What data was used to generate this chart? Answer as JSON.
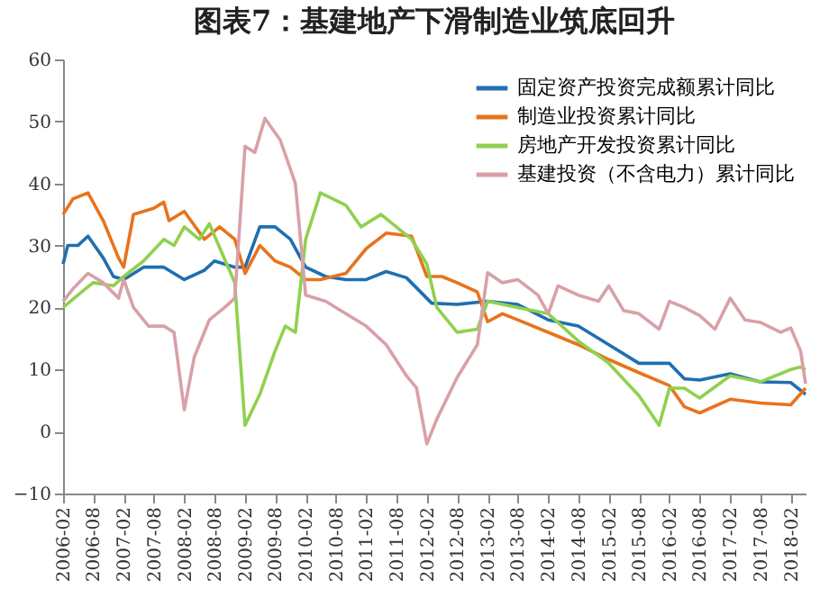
{
  "chart_data": {
    "type": "line",
    "title": "图表7：基建地产下滑制造业筑底回升",
    "xlim": [
      "2006-02",
      "2018-05"
    ],
    "xticks": [
      "2006-02",
      "2006-08",
      "2007-02",
      "2007-08",
      "2008-02",
      "2008-08",
      "2009-02",
      "2009-08",
      "2010-02",
      "2010-08",
      "2011-02",
      "2011-08",
      "2012-02",
      "2012-08",
      "2013-02",
      "2013-08",
      "2014-02",
      "2014-08",
      "2015-02",
      "2015-08",
      "2016-02",
      "2016-08",
      "2017-02",
      "2017-08",
      "2018-02"
    ],
    "ylim": [
      -10,
      60
    ],
    "yticks": [
      -10,
      0,
      10,
      20,
      30,
      40,
      50,
      60
    ],
    "grid": false,
    "legend": "top right",
    "line_style": "solid",
    "series": [
      {
        "name": "固定资产投资完成额累计同比",
        "color": "#1f6fb0",
        "x": [
          "2006-02",
          "2006-03",
          "2006-05",
          "2006-07",
          "2006-10",
          "2006-12",
          "2007-02",
          "2007-06",
          "2007-10",
          "2008-02",
          "2008-06",
          "2008-08",
          "2008-12",
          "2009-02",
          "2009-05",
          "2009-08",
          "2009-11",
          "2010-02",
          "2010-06",
          "2010-10",
          "2011-02",
          "2011-06",
          "2011-10",
          "2012-03",
          "2012-08",
          "2013-02",
          "2013-08",
          "2014-02",
          "2014-08",
          "2015-02",
          "2015-08",
          "2016-02",
          "2016-05",
          "2016-08",
          "2017-02",
          "2017-08",
          "2018-02",
          "2018-05"
        ],
        "values": [
          27,
          30,
          30,
          31.5,
          28,
          25,
          24.5,
          26.5,
          26.5,
          24.5,
          26,
          27.5,
          26.5,
          26.5,
          33,
          33,
          31,
          26.5,
          25,
          24.5,
          24.5,
          25.8,
          24.8,
          20.7,
          20.5,
          21,
          20.5,
          18,
          17,
          14,
          11,
          11,
          8.5,
          8.3,
          9.3,
          8,
          7.9,
          6
        ]
      },
      {
        "name": "制造业投资累计同比",
        "color": "#e8731c",
        "x": [
          "2006-02",
          "2006-04",
          "2006-07",
          "2006-10",
          "2007-01",
          "2007-02",
          "2007-04",
          "2007-08",
          "2007-10",
          "2007-11",
          "2008-02",
          "2008-06",
          "2008-09",
          "2008-12",
          "2009-02",
          "2009-05",
          "2009-08",
          "2009-11",
          "2010-02",
          "2010-05",
          "2010-10",
          "2011-02",
          "2011-06",
          "2011-11",
          "2012-02",
          "2012-05",
          "2012-08",
          "2012-12",
          "2013-02",
          "2013-05",
          "2013-08",
          "2014-02",
          "2014-08",
          "2015-02",
          "2015-08",
          "2016-02",
          "2016-05",
          "2016-08",
          "2017-02",
          "2017-08",
          "2018-02",
          "2018-05"
        ],
        "values": [
          35,
          37.5,
          38.5,
          34,
          28,
          26.5,
          35,
          36,
          37,
          34,
          35.5,
          31,
          33,
          31,
          25.5,
          30,
          27.5,
          26.5,
          24.5,
          24.5,
          25.5,
          29.5,
          32,
          31.5,
          25,
          25,
          24,
          22.5,
          17.7,
          19,
          18,
          16,
          14,
          11.6,
          9.5,
          7.4,
          4,
          3,
          5.2,
          4.6,
          4.3,
          7
        ]
      },
      {
        "name": "房地产开发投资累计同比",
        "color": "#8fd14f",
        "x": [
          "2006-02",
          "2006-05",
          "2006-08",
          "2006-12",
          "2007-02",
          "2007-06",
          "2007-10",
          "2007-12",
          "2008-02",
          "2008-05",
          "2008-07",
          "2008-12",
          "2009-02",
          "2009-05",
          "2009-08",
          "2009-10",
          "2009-12",
          "2010-02",
          "2010-05",
          "2010-10",
          "2011-01",
          "2011-05",
          "2011-08",
          "2011-11",
          "2012-02",
          "2012-04",
          "2012-08",
          "2012-12",
          "2013-02",
          "2013-08",
          "2014-02",
          "2014-08",
          "2015-02",
          "2015-08",
          "2015-12",
          "2016-02",
          "2016-05",
          "2016-08",
          "2017-02",
          "2017-08",
          "2018-02",
          "2018-04",
          "2018-05"
        ],
        "values": [
          20,
          22,
          24,
          23.5,
          25,
          27.5,
          31,
          30,
          33,
          31,
          33.5,
          24,
          1,
          6,
          13,
          17,
          16,
          31,
          38.5,
          36.5,
          33,
          35,
          33,
          31,
          27,
          20,
          16,
          16.5,
          21,
          20,
          19,
          14.6,
          11,
          5.8,
          1,
          7,
          7,
          5.4,
          9,
          8,
          10,
          10.4,
          10
        ]
      },
      {
        "name": "基建投资（不含电力）累计同比",
        "color": "#d9a0a8",
        "x": [
          "2006-02",
          "2006-04",
          "2006-07",
          "2006-10",
          "2007-01",
          "2007-02",
          "2007-04",
          "2007-07",
          "2007-10",
          "2007-12",
          "2008-02",
          "2008-04",
          "2008-07",
          "2008-10",
          "2008-12",
          "2009-02",
          "2009-04",
          "2009-06",
          "2009-09",
          "2009-12",
          "2010-02",
          "2010-06",
          "2010-10",
          "2011-02",
          "2011-06",
          "2011-10",
          "2011-12",
          "2012-02",
          "2012-04",
          "2012-08",
          "2012-12",
          "2013-02",
          "2013-05",
          "2013-08",
          "2013-12",
          "2014-02",
          "2014-04",
          "2014-08",
          "2014-12",
          "2015-02",
          "2015-05",
          "2015-08",
          "2015-12",
          "2016-02",
          "2016-05",
          "2016-08",
          "2016-11",
          "2017-02",
          "2017-05",
          "2017-08",
          "2017-12",
          "2018-02",
          "2018-04",
          "2018-05"
        ],
        "values": [
          21,
          23,
          25.5,
          24,
          21.5,
          24.5,
          20,
          17,
          17,
          16,
          3.5,
          12,
          18,
          20,
          21.5,
          46,
          45,
          50.5,
          47,
          40,
          22,
          21,
          19,
          17,
          14,
          9,
          7,
          -2,
          2,
          8.7,
          14,
          25.6,
          24,
          24.5,
          22,
          19,
          23.5,
          22,
          21,
          23.5,
          19.5,
          19,
          16.5,
          21,
          20,
          18.7,
          16.5,
          21.5,
          18,
          17.6,
          16,
          16.7,
          13,
          7.7
        ]
      }
    ]
  }
}
